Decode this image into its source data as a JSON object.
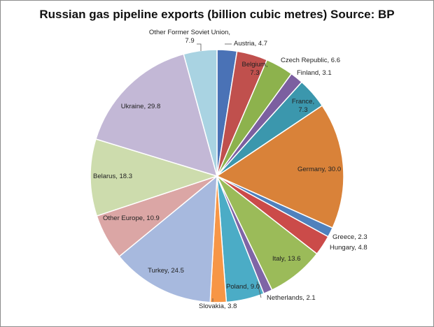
{
  "chart_data": {
    "type": "pie",
    "title": "Russian gas pipeline exports (billion cubic metres) Source: BP",
    "slices": [
      {
        "label": "Austria",
        "value": 4.7,
        "text": "Austria, 4.7",
        "color": "#4a72b6"
      },
      {
        "label": "Belgium",
        "value": 7.3,
        "text": [
          "Belgium,",
          "7.3"
        ],
        "color": "#c0504d"
      },
      {
        "label": "Czech Republic",
        "value": 6.6,
        "text": "Czech Republic, 6.6",
        "color": "#8db24d"
      },
      {
        "label": "Finland",
        "value": 3.1,
        "text": "Finland, 3.1",
        "color": "#7c5fa0"
      },
      {
        "label": "France",
        "value": 7.3,
        "text": [
          "France,",
          "7.3"
        ],
        "color": "#3b97ad"
      },
      {
        "label": "Germany",
        "value": 30.0,
        "text": "Germany, 30.0",
        "color": "#d98239"
      },
      {
        "label": "Greece",
        "value": 2.3,
        "text": "Greece,  2.3",
        "color": "#4f81bd"
      },
      {
        "label": "Hungary",
        "value": 4.8,
        "text": "Hungary, 4.8",
        "color": "#cb4b49"
      },
      {
        "label": "Italy",
        "value": 13.6,
        "text": "Italy, 13.6",
        "color": "#9bbb59"
      },
      {
        "label": "Netherlands",
        "value": 2.1,
        "text": "Netherlands,  2.1",
        "color": "#7f65a6"
      },
      {
        "label": "Poland",
        "value": 9.0,
        "text": "Poland, 9.0",
        "color": "#4bacc6"
      },
      {
        "label": "Slovakia",
        "value": 3.8,
        "text": "Slovakia, 3.8",
        "color": "#f79646"
      },
      {
        "label": "Turkey",
        "value": 24.5,
        "text": "Turkey, 24.5",
        "color": "#a7b9de"
      },
      {
        "label": "Other Europe",
        "value": 10.9,
        "text": "Other Europe, 10.9",
        "color": "#dba6a5"
      },
      {
        "label": "Belarus",
        "value": 18.3,
        "text": "Belarus, 18.3",
        "color": "#cddcad"
      },
      {
        "label": "Ukraine",
        "value": 29.8,
        "text": "Ukraine, 29.8",
        "color": "#c3b8d6"
      },
      {
        "label": "Other Former Soviet Union",
        "value": 7.9,
        "text": [
          "Other Former Soviet Union,",
          "7.9"
        ],
        "color": "#a9d3e2"
      }
    ],
    "start_angle_deg": 0,
    "direction": "clockwise",
    "legend": "none"
  }
}
